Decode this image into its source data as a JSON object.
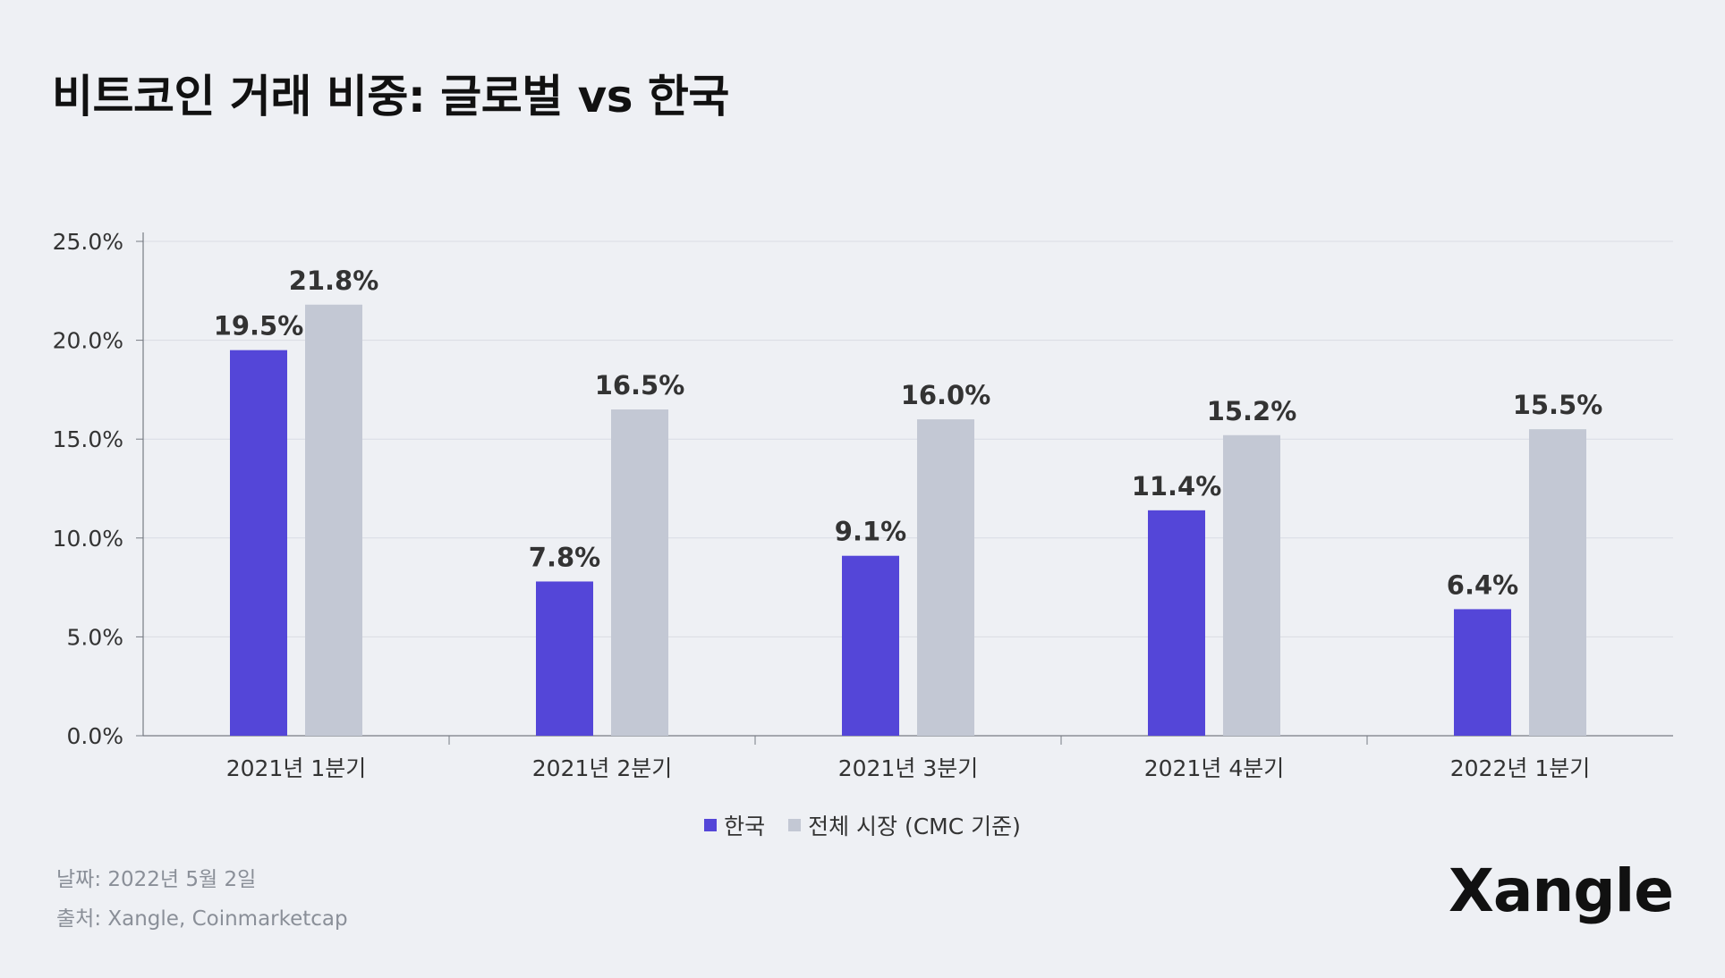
{
  "title": "비트코인 거래 비중: 글로벌 vs 한국",
  "chart_data": {
    "type": "bar",
    "categories": [
      "2021년 1분기",
      "2021년 2분기",
      "2021년 3분기",
      "2021년 4분기",
      "2022년 1분기"
    ],
    "series": [
      {
        "name": "한국",
        "color": "#5446d8",
        "values": [
          19.5,
          7.8,
          9.1,
          11.4,
          6.4
        ],
        "labels": [
          "19.5%",
          "7.8%",
          "9.1%",
          "11.4%",
          "6.4%"
        ]
      },
      {
        "name": "전체 시장 (CMC 기준)",
        "color": "#c3c8d4",
        "values": [
          21.8,
          16.5,
          16.0,
          15.2,
          15.5
        ],
        "labels": [
          "21.8%",
          "16.5%",
          "16.0%",
          "15.2%",
          "15.5%"
        ]
      }
    ],
    "ylim": [
      0,
      25
    ],
    "yticks": [
      "0.0%",
      "5.0%",
      "10.0%",
      "15.0%",
      "20.0%",
      "25.0%"
    ],
    "grid": true,
    "legend_position": "bottom-center"
  },
  "legend": [
    "한국",
    "전체 시장 (CMC 기준)"
  ],
  "footer": {
    "date": "날짜: 2022년 5월 2일",
    "source": "출처: Xangle, Coinmarketcap"
  },
  "logo": "Xangle"
}
